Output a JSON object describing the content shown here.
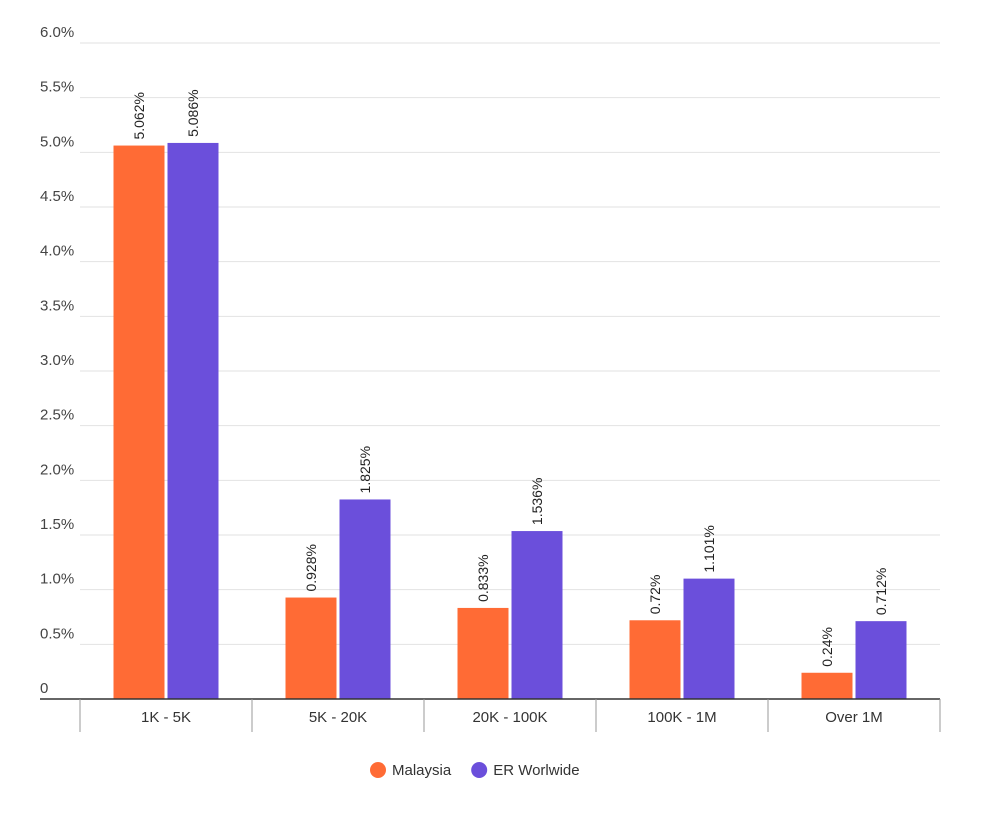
{
  "chart_data": {
    "type": "bar",
    "categories": [
      "1K - 5K",
      "5K - 20K",
      "20K - 100K",
      "100K - 1M",
      "Over 1M"
    ],
    "series": [
      {
        "name": "Malaysia",
        "values": [
          5.062,
          0.928,
          0.833,
          0.72,
          0.24
        ],
        "labels": [
          "5.062%",
          "0.928%",
          "0.833%",
          "0.72%",
          "0.24%"
        ],
        "color": "#FF6B35"
      },
      {
        "name": "ER Worlwide",
        "values": [
          5.086,
          1.825,
          1.536,
          1.101,
          0.712
        ],
        "labels": [
          "5.086%",
          "1.825%",
          "1.536%",
          "1.101%",
          "0.712%"
        ],
        "color": "#6B4FDB"
      }
    ],
    "ylim": [
      0,
      6.0
    ],
    "yticks": [
      0,
      0.5,
      1.0,
      1.5,
      2.0,
      2.5,
      3.0,
      3.5,
      4.0,
      4.5,
      5.0,
      5.5,
      6.0
    ],
    "ytick_labels": [
      "0",
      "0.5%",
      "1.0%",
      "1.5%",
      "2.0%",
      "2.5%",
      "3.0%",
      "3.5%",
      "4.0%",
      "4.5%",
      "5.0%",
      "5.5%",
      "6.0%"
    ],
    "title": "",
    "xlabel": "",
    "ylabel": "",
    "grid": true,
    "legend_position": "bottom-center"
  }
}
